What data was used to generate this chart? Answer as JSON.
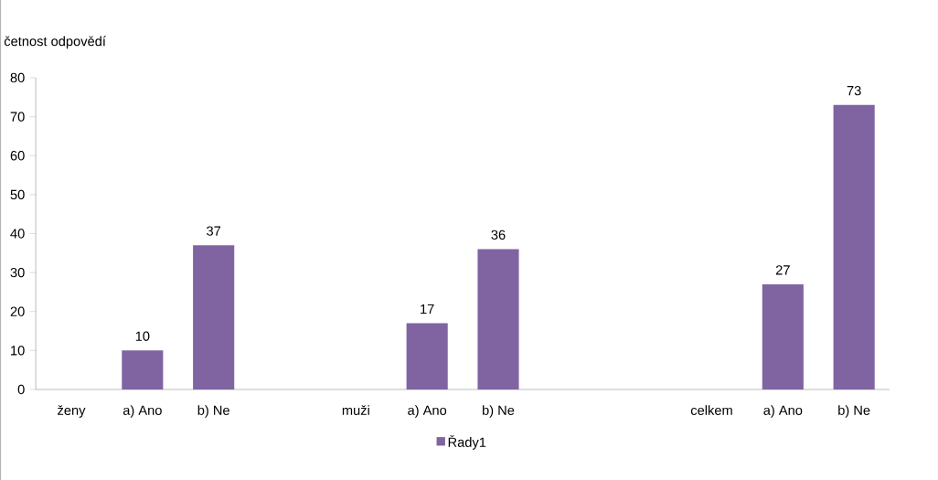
{
  "chart_data": {
    "type": "bar",
    "ylabel": "četnost odpovědí",
    "categories": [
      "ženy",
      "a) Ano",
      "b) Ne",
      null,
      "muži",
      "a) Ano",
      "b) Ne",
      null,
      null,
      "celkem",
      "a) Ano",
      "b) Ne"
    ],
    "series": [
      {
        "name": "Řady1",
        "color": "#8064a2",
        "values": [
          null,
          10,
          37,
          null,
          null,
          17,
          36,
          null,
          null,
          null,
          27,
          73
        ]
      }
    ],
    "ylim": [
      0,
      80
    ],
    "yticks": [
      0,
      10,
      20,
      30,
      40,
      50,
      60,
      70,
      80
    ],
    "data_labels": true,
    "legend": "bottom",
    "grid": false
  }
}
